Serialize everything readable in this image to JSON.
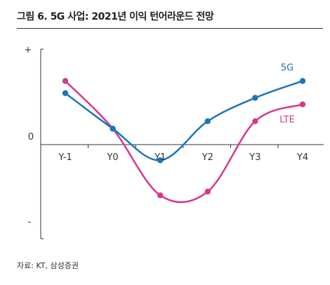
{
  "figure": {
    "title": "그림 6. 5G 사업: 2021년 이익 턴어라운드 전망",
    "source": "자료: KT, 삼성증권"
  },
  "chart_data": {
    "type": "line",
    "categories": [
      "Y-1",
      "Y0",
      "Y1",
      "Y2",
      "Y3",
      "Y4"
    ],
    "y_tick_labels": {
      "top": "+",
      "zero": "0",
      "bottom": "-"
    },
    "ylim": [
      -1,
      1
    ],
    "grid": false,
    "series": [
      {
        "name": "5G",
        "color": "#1a75bb",
        "values": [
          0.55,
          0.17,
          -0.17,
          0.25,
          0.5,
          0.68
        ]
      },
      {
        "name": "LTE",
        "color": "#d6398a",
        "values": [
          0.68,
          0.17,
          -0.55,
          -0.51,
          0.25,
          0.43
        ]
      }
    ]
  }
}
